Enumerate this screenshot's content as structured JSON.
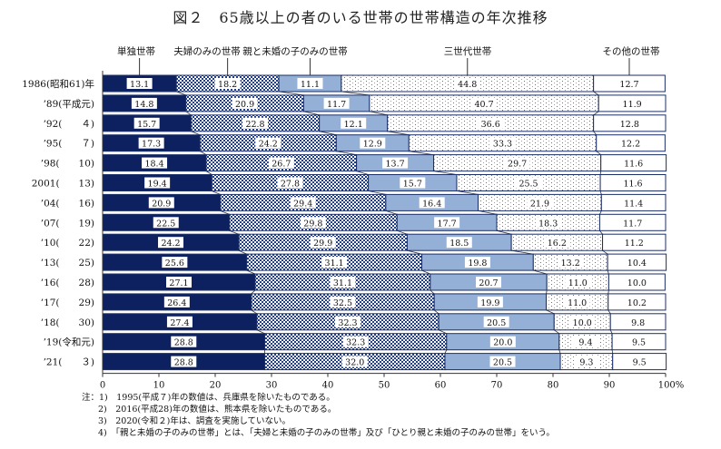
{
  "title": "図２　65歳以上の者のいる世帯の世帯構造の年次推移",
  "chart_data": {
    "type": "bar",
    "orientation": "horizontal",
    "stacked": true,
    "xlim": [
      0,
      100
    ],
    "x_ticks": [
      "0",
      "10",
      "20",
      "30",
      "40",
      "50",
      "60",
      "70",
      "80",
      "90",
      "100%"
    ],
    "categories": [
      "1986(昭和61)年",
      "’89(平成元)",
      "’92(　　４)",
      "’95(　　７)",
      "’98(　　10)",
      "2001(　　13)",
      "’04(　　16)",
      "’07(　　19)",
      "’10(　　22)",
      "’13(　　25)",
      "’16(　　28)",
      "’17(　　29)",
      "’18(　　30)",
      "’19(令和元)",
      "’21(　　３)"
    ],
    "series": [
      {
        "name": "単独世帯",
        "color": "#0d2160",
        "pattern": "solid",
        "values": [
          13.1,
          14.8,
          15.7,
          17.3,
          18.4,
          19.4,
          20.9,
          22.5,
          24.2,
          25.6,
          27.1,
          26.4,
          27.4,
          28.8,
          28.8
        ]
      },
      {
        "name": "夫婦のみの世帯",
        "color": "#1f3f8a",
        "pattern": "checker",
        "values": [
          18.2,
          20.9,
          22.8,
          24.2,
          26.7,
          27.8,
          29.4,
          29.8,
          29.9,
          31.1,
          31.1,
          32.5,
          32.3,
          32.3,
          32.0
        ]
      },
      {
        "name": "親と未婚の子のみの世帯",
        "color": "#94b0d6",
        "pattern": "solid",
        "values": [
          11.1,
          11.7,
          12.1,
          12.9,
          13.7,
          15.7,
          16.4,
          17.7,
          18.5,
          19.8,
          20.7,
          19.9,
          20.5,
          20.0,
          20.5
        ]
      },
      {
        "name": "三世代世帯",
        "color": "#3a7cc0",
        "pattern": "dots",
        "values": [
          44.8,
          40.7,
          36.6,
          33.3,
          29.7,
          25.5,
          21.9,
          18.3,
          16.2,
          13.2,
          11.0,
          11.0,
          10.0,
          9.4,
          9.3
        ]
      },
      {
        "name": "その他の世帯",
        "color": "#ffffff",
        "pattern": "solid",
        "values": [
          12.7,
          11.9,
          12.8,
          12.2,
          11.6,
          11.6,
          11.4,
          11.7,
          11.2,
          10.4,
          10.0,
          10.2,
          9.8,
          9.5,
          9.5
        ]
      }
    ],
    "legend_placement": "top"
  },
  "notes": [
    "注：1)　1995(平成７)年の数値は、兵庫県を除いたものである。",
    "2)　2016(平成28)年の数値は、熊本県を除いたものである。",
    "3)　2020(令和２)年は、調査を実施していない。",
    "4)　「親と未婚の子のみの世帯」とは、「夫婦と未婚の子のみの世帯」及び「ひとり親と未婚の子のみの世帯」をいう。"
  ]
}
